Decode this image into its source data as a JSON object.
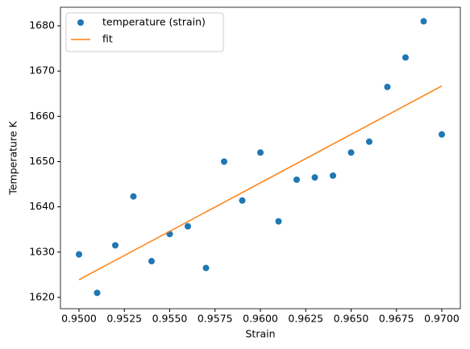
{
  "chart_data": {
    "type": "scatter",
    "x_label": "Strain",
    "y_label": "Temperature K",
    "series": [
      {
        "name": "temperature (strain)",
        "type": "scatter",
        "color": "#1f77b4",
        "x": [
          0.95,
          0.951,
          0.952,
          0.953,
          0.954,
          0.955,
          0.956,
          0.957,
          0.958,
          0.959,
          0.96,
          0.961,
          0.962,
          0.963,
          0.964,
          0.965,
          0.966,
          0.967,
          0.968,
          0.969,
          0.97
        ],
        "values": [
          1629.5,
          1621,
          1631.5,
          1642.3,
          1628,
          1634,
          1635.7,
          1626.5,
          1650,
          1641.4,
          1652,
          1636.8,
          1646,
          1646.5,
          1646.9,
          1652,
          1654.4,
          1666.5,
          1673,
          1681,
          1656
        ]
      },
      {
        "name": "fit",
        "type": "line",
        "color": "#ff7f0e",
        "x": [
          0.95,
          0.97
        ],
        "values": [
          1623.9,
          1666.7
        ]
      }
    ],
    "xlim": [
      0.948978,
      0.971022
    ],
    "ylim": [
      1617.5,
      1684.1
    ],
    "xticks": [
      {
        "value": 0.95,
        "label": "0.9500"
      },
      {
        "value": 0.9525,
        "label": "0.9525"
      },
      {
        "value": 0.955,
        "label": "0.9550"
      },
      {
        "value": 0.9575,
        "label": "0.9575"
      },
      {
        "value": 0.96,
        "label": "0.9600"
      },
      {
        "value": 0.9625,
        "label": "0.9625"
      },
      {
        "value": 0.965,
        "label": "0.9650"
      },
      {
        "value": 0.9675,
        "label": "0.9675"
      },
      {
        "value": 0.97,
        "label": "0.9700"
      }
    ],
    "yticks": [
      1620,
      1630,
      1640,
      1650,
      1660,
      1670,
      1680
    ],
    "grid": false,
    "legend": "upper left"
  }
}
